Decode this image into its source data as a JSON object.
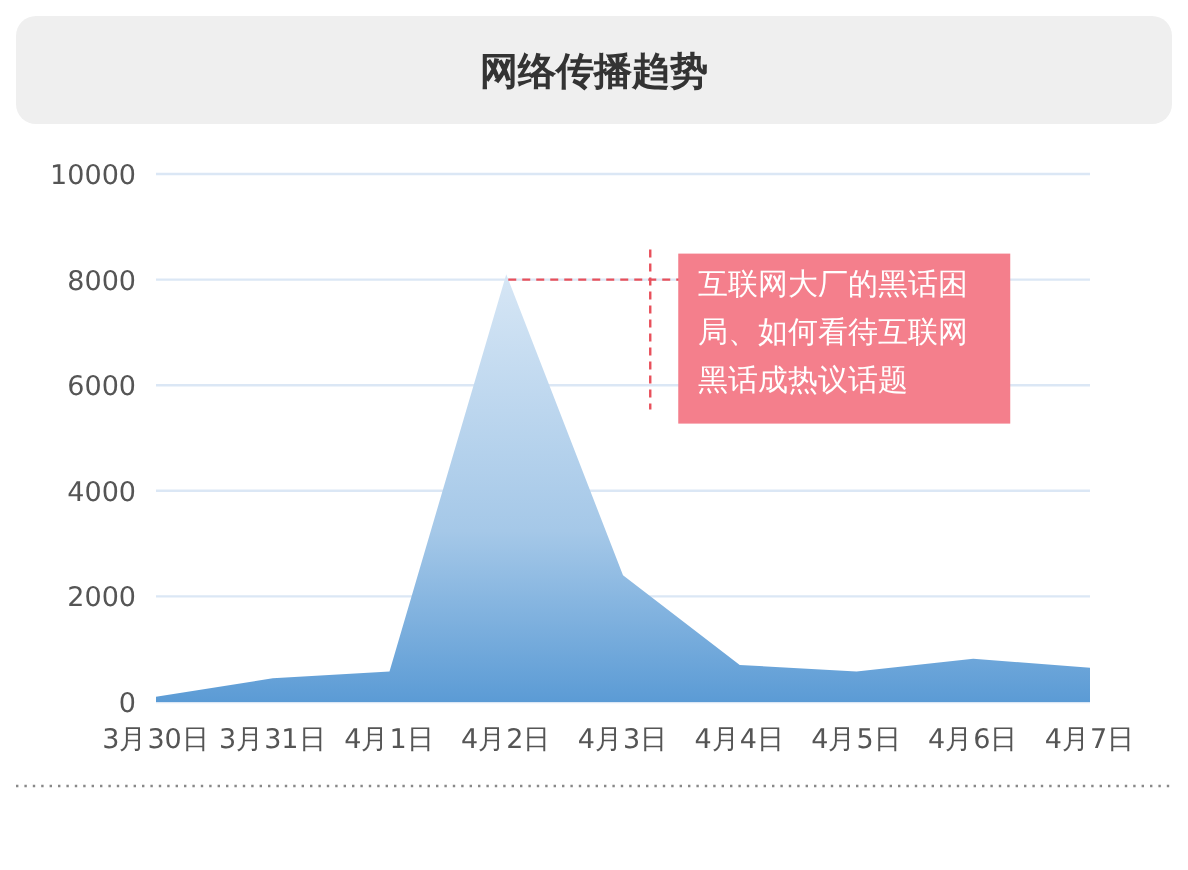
{
  "chart_data": {
    "type": "area",
    "title": "网络传播趋势",
    "categories": [
      "3月30日",
      "3月31日",
      "4月1日",
      "4月2日",
      "4月3日",
      "4月4日",
      "4月5日",
      "4月6日",
      "4月7日"
    ],
    "series": [
      {
        "color": "#5b9bd5",
        "values": [
          100,
          450,
          580,
          8100,
          2400,
          700,
          580,
          820,
          650
        ]
      }
    ],
    "ylim": [
      0,
      10000
    ],
    "yticks": [
      0,
      2000,
      4000,
      6000,
      8000,
      10000
    ],
    "grid": "y",
    "marker": "none",
    "annotations": [
      {
        "text": "互联网大厂的黑话困局、如何看待互联网黑话成热议话题",
        "x": "4月2日",
        "y": 8000
      }
    ]
  }
}
